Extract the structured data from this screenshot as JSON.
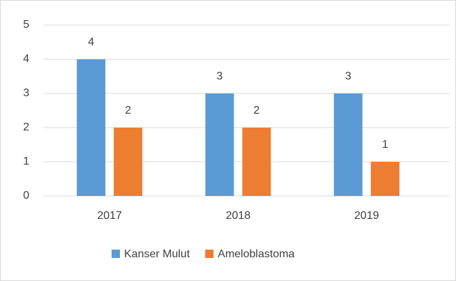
{
  "chart_data": {
    "type": "bar",
    "categories": [
      "2017",
      "2018",
      "2019"
    ],
    "series": [
      {
        "name": "Kanser Mulut",
        "color": "#5b9bd5",
        "values": [
          4,
          3,
          3
        ]
      },
      {
        "name": "Ameloblastoma",
        "color": "#ed7d31",
        "values": [
          2,
          2,
          1
        ]
      }
    ],
    "ylim": [
      0,
      5
    ],
    "yticks": [
      0,
      1,
      2,
      3,
      4,
      5
    ],
    "grid": true,
    "data_labels": true,
    "legend": "bottom"
  }
}
